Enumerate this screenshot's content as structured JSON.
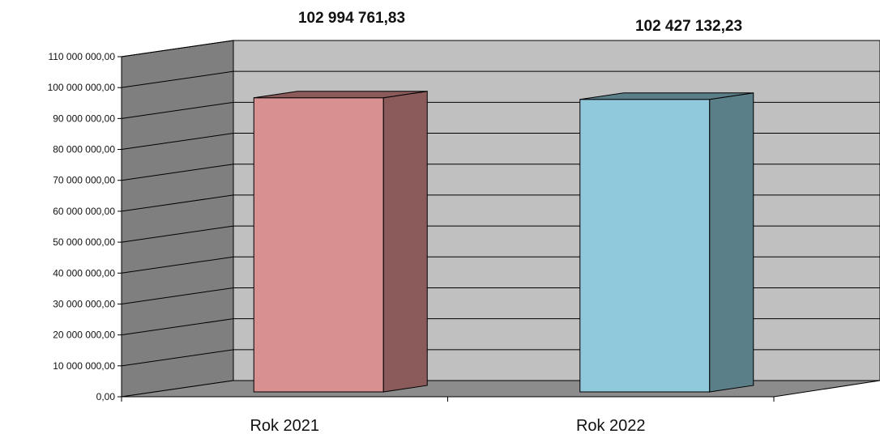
{
  "chart_data": {
    "type": "bar",
    "style": "3d-column",
    "categories": [
      "Rok 2021",
      "Rok 2022"
    ],
    "values": [
      102994761.83,
      102427132.23
    ],
    "data_labels": [
      "102 994 761,83",
      "102 427 132,23"
    ],
    "bar_colors": [
      "#d99090",
      "#90c8dc"
    ],
    "bar_side_colors": [
      "#8b5a5a",
      "#5b7f89"
    ],
    "ylim": [
      0,
      110000000
    ],
    "y_ticks": [
      "0,00",
      "10 000 000,00",
      "20 000 000,00",
      "30 000 000,00",
      "40 000 000,00",
      "50 000 000,00",
      "60 000 000,00",
      "70 000 000,00",
      "80 000 000,00",
      "90 000 000,00",
      "100 000 000,00",
      "110 000 000,00"
    ],
    "grid": true,
    "colors": {
      "back_wall": "#c0c0c0",
      "side_wall": "#7f7f7f",
      "floor": "#8c8c8c"
    }
  }
}
